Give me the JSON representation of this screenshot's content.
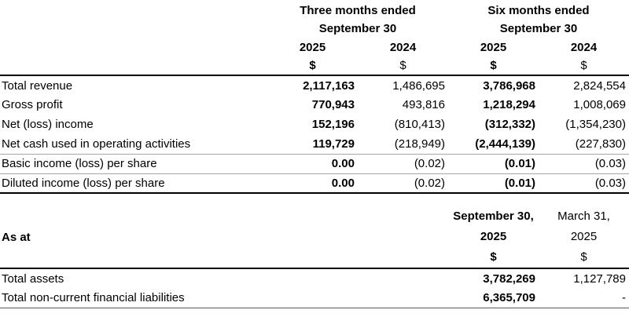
{
  "colors": {
    "background": "#ffffff",
    "text": "#000000",
    "rule_strong": "#000000",
    "rule_light": "#a6a6a6",
    "rule_bottom": "#595959"
  },
  "table1": {
    "groups": [
      {
        "line1": "Three months ended",
        "line2": "September 30"
      },
      {
        "line1": "Six months ended",
        "line2": "September 30"
      }
    ],
    "columns": [
      {
        "year": "2025",
        "currency": "$"
      },
      {
        "year": "2024",
        "currency": "$"
      },
      {
        "year": "2025",
        "currency": "$"
      },
      {
        "year": "2024",
        "currency": "$"
      }
    ],
    "rows": [
      {
        "label": "Total revenue",
        "values": [
          "2,117,163",
          "1,486,695",
          "3,786,968",
          "2,824,554"
        ]
      },
      {
        "label": "Gross profit",
        "values": [
          "770,943",
          "493,816",
          "1,218,294",
          "1,008,069"
        ]
      },
      {
        "label": "Net (loss) income",
        "values": [
          "152,196",
          "(810,413)",
          "(312,332)",
          "(1,354,230)"
        ]
      },
      {
        "label": "Net cash used in operating activities",
        "values": [
          "119,729",
          "(218,949)",
          "(2,444,139)",
          "(227,830)"
        ]
      },
      {
        "label": "Basic income (loss) per share",
        "values": [
          "0.00",
          "(0.02)",
          "(0.01)",
          "(0.03)"
        ]
      },
      {
        "label": "Diluted income (loss) per share",
        "values": [
          "0.00",
          "(0.02)",
          "(0.01)",
          "(0.03)"
        ]
      }
    ]
  },
  "table2": {
    "label": "As at",
    "columns": [
      {
        "line1": "September 30,",
        "line2": "2025",
        "currency": "$"
      },
      {
        "line1": "March 31,",
        "line2": "2025",
        "currency": "$"
      }
    ],
    "rows": [
      {
        "label": "Total assets",
        "values": [
          "3,782,269",
          "1,127,789"
        ]
      },
      {
        "label": "Total non-current financial liabilities",
        "values": [
          "6,365,709",
          "-"
        ]
      }
    ]
  }
}
